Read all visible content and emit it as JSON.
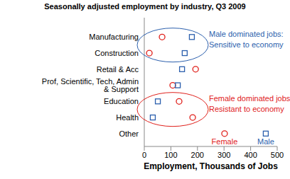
{
  "chart_data": {
    "type": "scatter",
    "title": "Seasonally adjusted employment by industry, Q3 2009",
    "x_label": "Employment, Thousands of Jobs",
    "categories": [
      "Manufacturing",
      "Construction",
      "Retail & Acc",
      "Prof, Scientific, Tech, Admin & Support",
      "Education",
      "Health",
      "Other"
    ],
    "series": [
      {
        "name": "Female",
        "color": "#e0201b",
        "marker": "circle",
        "values": [
          67,
          19,
          193,
          107,
          131,
          182,
          302
        ]
      },
      {
        "name": "Male",
        "color": "#2b5fad",
        "marker": "square",
        "values": [
          179,
          152,
          142,
          126,
          51,
          32,
          457
        ]
      }
    ],
    "xlim": [
      0,
      500
    ],
    "xticks": [
      0,
      100,
      200,
      300,
      400,
      500
    ],
    "grid": false,
    "annotations": [
      {
        "text": [
          "Male dominated jobs:",
          "Sensitive to economy"
        ],
        "categories": [
          "Manufacturing",
          "Construction"
        ],
        "color": "#2b5fad"
      },
      {
        "text": [
          "Female dominated jobs:",
          "Resistant to economy"
        ],
        "categories": [
          "Education",
          "Health"
        ],
        "color": "#e0201b"
      }
    ]
  }
}
